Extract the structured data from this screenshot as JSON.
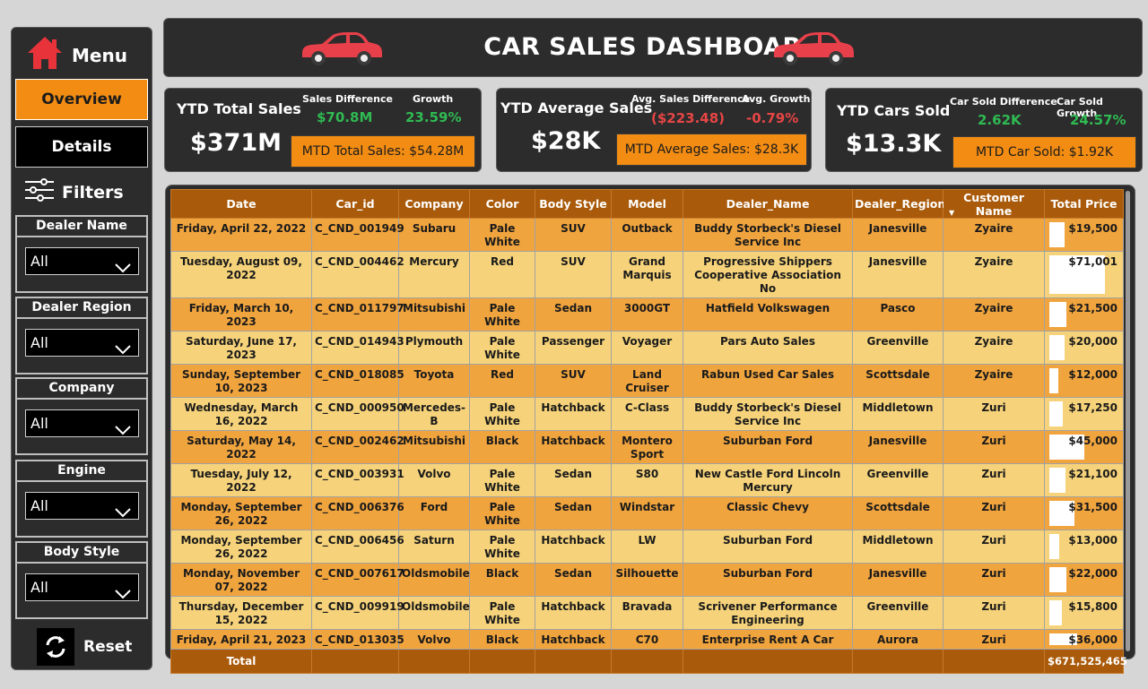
{
  "sidebar": {
    "menu_label": "Menu",
    "overview_label": "Overview",
    "details_label": "Details",
    "filters_label": "Filters",
    "filters": [
      {
        "label": "Dealer Name",
        "value": "All"
      },
      {
        "label": "Dealer Region",
        "value": "All"
      },
      {
        "label": "Company",
        "value": "All"
      },
      {
        "label": "Engine",
        "value": "All"
      },
      {
        "label": "Body Style",
        "value": "All"
      }
    ],
    "reset_label": "Reset"
  },
  "header": {
    "title": "CAR SALES DASHBOARD"
  },
  "colors": {
    "accent": "#f28c13",
    "panel": "#2c2c2c",
    "positive": "#2fba52",
    "negative": "#e64545",
    "header_brown": "#a95a0a"
  },
  "kpis": [
    {
      "title": "YTD Total Sales",
      "value": "$371M",
      "diff_label": "Sales Difference",
      "diff_value": "$70.8M",
      "growth_label": "Growth",
      "growth_value": "23.59%",
      "mtd": "MTD Total Sales: $54.28M"
    },
    {
      "title": "YTD Average Sales",
      "value": "$28K",
      "diff_label": "Avg. Sales Difference",
      "diff_value": "($223.48)",
      "growth_label": "Avg. Growth",
      "growth_value": "-0.79%",
      "mtd": "MTD Average Sales: $28.3K"
    },
    {
      "title": "YTD Cars Sold",
      "value": "$13.3K",
      "diff_label": "Car Sold Difference",
      "diff_value": "2.62K",
      "growth_label": "Car Sold Growth",
      "growth_value": "24.57%",
      "mtd": "MTD Car Sold: $1.92K"
    }
  ],
  "table": {
    "columns": [
      "Date",
      "Car_id",
      "Company",
      "Color",
      "Body Style",
      "Model",
      "Dealer_Name",
      "Dealer_Region",
      "Customer Name",
      "Total Price"
    ],
    "rows": [
      {
        "date": "Friday, April 22, 2022",
        "car_id": "C_CND_001949",
        "company": "Subaru",
        "color": "Pale White",
        "body": "SUV",
        "model": "Outback",
        "dealer": "Buddy Storbeck's Diesel Service Inc",
        "region": "Janesville",
        "customer": "Zyaire",
        "price": "$19,500",
        "price_num": 19500
      },
      {
        "date": "Tuesday, August 09, 2022",
        "car_id": "C_CND_004462",
        "company": "Mercury",
        "color": "Red",
        "body": "SUV",
        "model": "Grand Marquis",
        "dealer": "Progressive Shippers Cooperative Association No",
        "region": "Janesville",
        "customer": "Zyaire",
        "price": "$71,001",
        "price_num": 71001
      },
      {
        "date": "Friday, March 10, 2023",
        "car_id": "C_CND_011797",
        "company": "Mitsubishi",
        "color": "Pale White",
        "body": "Sedan",
        "model": "3000GT",
        "dealer": "Hatfield Volkswagen",
        "region": "Pasco",
        "customer": "Zyaire",
        "price": "$21,500",
        "price_num": 21500
      },
      {
        "date": "Saturday, June 17, 2023",
        "car_id": "C_CND_014943",
        "company": "Plymouth",
        "color": "Pale White",
        "body": "Passenger",
        "model": "Voyager",
        "dealer": "Pars Auto Sales",
        "region": "Greenville",
        "customer": "Zyaire",
        "price": "$20,000",
        "price_num": 20000
      },
      {
        "date": "Sunday, September 10, 2023",
        "car_id": "C_CND_018085",
        "company": "Toyota",
        "color": "Red",
        "body": "SUV",
        "model": "Land Cruiser",
        "dealer": "Rabun Used Car Sales",
        "region": "Scottsdale",
        "customer": "Zyaire",
        "price": "$12,000",
        "price_num": 12000
      },
      {
        "date": "Wednesday, March 16, 2022",
        "car_id": "C_CND_000950",
        "company": "Mercedes-B",
        "color": "Pale White",
        "body": "Hatchback",
        "model": "C-Class",
        "dealer": "Buddy Storbeck's Diesel Service Inc",
        "region": "Middletown",
        "customer": "Zuri",
        "price": "$17,250",
        "price_num": 17250
      },
      {
        "date": "Saturday, May 14, 2022",
        "car_id": "C_CND_002462",
        "company": "Mitsubishi",
        "color": "Black",
        "body": "Hatchback",
        "model": "Montero Sport",
        "dealer": "Suburban Ford",
        "region": "Janesville",
        "customer": "Zuri",
        "price": "$45,000",
        "price_num": 45000
      },
      {
        "date": "Tuesday, July 12, 2022",
        "car_id": "C_CND_003931",
        "company": "Volvo",
        "color": "Pale White",
        "body": "Sedan",
        "model": "S80",
        "dealer": "New Castle Ford Lincoln Mercury",
        "region": "Greenville",
        "customer": "Zuri",
        "price": "$21,100",
        "price_num": 21100
      },
      {
        "date": "Monday, September 26, 2022",
        "car_id": "C_CND_006376",
        "company": "Ford",
        "color": "Pale White",
        "body": "Sedan",
        "model": "Windstar",
        "dealer": "Classic Chevy",
        "region": "Scottsdale",
        "customer": "Zuri",
        "price": "$31,500",
        "price_num": 31500
      },
      {
        "date": "Monday, September 26, 2022",
        "car_id": "C_CND_006456",
        "company": "Saturn",
        "color": "Pale White",
        "body": "Hatchback",
        "model": "LW",
        "dealer": "Suburban Ford",
        "region": "Middletown",
        "customer": "Zuri",
        "price": "$13,000",
        "price_num": 13000
      },
      {
        "date": "Monday, November 07, 2022",
        "car_id": "C_CND_007617",
        "company": "Oldsmobile",
        "color": "Black",
        "body": "Sedan",
        "model": "Silhouette",
        "dealer": "Suburban Ford",
        "region": "Janesville",
        "customer": "Zuri",
        "price": "$22,000",
        "price_num": 22000
      },
      {
        "date": "Thursday, December 15, 2022",
        "car_id": "C_CND_009919",
        "company": "Oldsmobile",
        "color": "Pale White",
        "body": "Hatchback",
        "model": "Bravada",
        "dealer": "Scrivener Performance Engineering",
        "region": "Greenville",
        "customer": "Zuri",
        "price": "$15,800",
        "price_num": 15800
      },
      {
        "date": "Friday, April 21, 2023",
        "car_id": "C_CND_013035",
        "company": "Volvo",
        "color": "Black",
        "body": "Hatchback",
        "model": "C70",
        "dealer": "Enterprise Rent A Car",
        "region": "Aurora",
        "customer": "Zuri",
        "price": "$36,000",
        "price_num": 36000
      }
    ],
    "total_label": "Total",
    "total_value": "$671,525,465"
  }
}
